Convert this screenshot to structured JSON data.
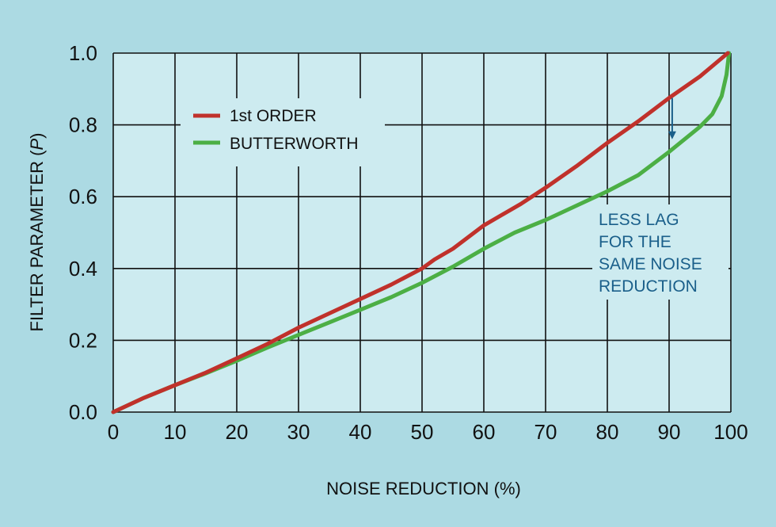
{
  "chart_data": {
    "type": "line",
    "xlabel": "NOISE REDUCTION (%)",
    "ylabel_prefix": "FILTER PARAMETER (",
    "ylabel_var": "P",
    "ylabel_suffix": ")",
    "xlim": [
      0,
      100
    ],
    "ylim": [
      0,
      1.0
    ],
    "x_ticks": [
      0,
      10,
      20,
      30,
      40,
      50,
      60,
      70,
      80,
      90,
      100
    ],
    "x_tick_labels": [
      "0",
      "10",
      "20",
      "30",
      "40",
      "50",
      "60",
      "70",
      "80",
      "90",
      "100"
    ],
    "y_ticks": [
      0,
      0.2,
      0.4,
      0.6,
      0.8,
      1.0
    ],
    "y_tick_labels": [
      "0.0",
      "0.2",
      "0.4",
      "0.6",
      "0.8",
      "1.0"
    ],
    "grid": true,
    "legend_position": "top-left",
    "series": [
      {
        "name": "1st ORDER",
        "color": "#c0312b",
        "x": [
          0,
          5,
          10,
          15,
          20,
          25,
          30,
          35,
          40,
          45,
          50,
          52,
          55,
          60,
          66,
          70,
          75,
          80,
          85,
          90,
          95,
          99.5
        ],
        "y": [
          0.0,
          0.04,
          0.075,
          0.11,
          0.15,
          0.19,
          0.235,
          0.275,
          0.315,
          0.355,
          0.4,
          0.425,
          0.455,
          0.52,
          0.58,
          0.625,
          0.685,
          0.75,
          0.81,
          0.875,
          0.935,
          1.0
        ]
      },
      {
        "name": "BUTTERWORTH",
        "color": "#4caf45",
        "x": [
          0,
          5,
          10,
          15,
          20,
          25,
          30,
          35,
          40,
          45,
          50,
          55,
          60,
          65,
          70,
          75,
          80,
          85,
          90,
          95,
          97,
          98.5,
          99.3,
          99.7
        ],
        "y": [
          0.0,
          0.04,
          0.075,
          0.108,
          0.143,
          0.18,
          0.215,
          0.25,
          0.285,
          0.32,
          0.36,
          0.405,
          0.455,
          0.5,
          0.535,
          0.575,
          0.615,
          0.66,
          0.725,
          0.795,
          0.83,
          0.88,
          0.94,
          1.0
        ]
      }
    ],
    "annotation": {
      "lines": [
        "LESS LAG",
        "FOR THE",
        "SAME NOISE",
        "REDUCTION"
      ],
      "color": "#1a5f8a",
      "arrow_x": 90.5,
      "arrow_from_y": 0.875,
      "arrow_to_y": 0.76
    }
  },
  "colors": {
    "page_background": "#acdae3",
    "plot_background": "#cdebf0",
    "grid": "#111111"
  }
}
